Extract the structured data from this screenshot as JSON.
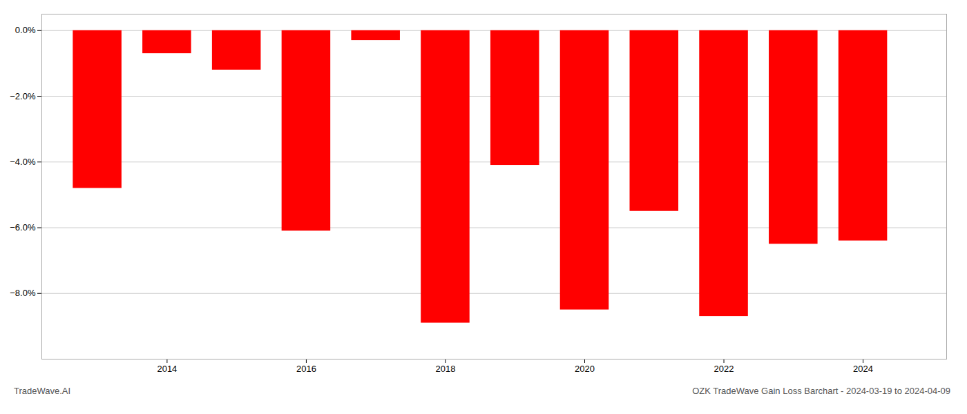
{
  "chart_data": {
    "type": "bar",
    "title": "OZK TradeWave Gain Loss Barchart - 2024-03-19 to 2024-04-09",
    "annotations": [
      "TradeWave.AI"
    ],
    "x": [
      2013,
      2014,
      2015,
      2016,
      2017,
      2018,
      2019,
      2020,
      2021,
      2022,
      2023,
      2024
    ],
    "values": [
      -4.8,
      -0.7,
      -1.2,
      -6.1,
      -0.3,
      -8.9,
      -4.1,
      -8.5,
      -5.5,
      -8.7,
      -6.5,
      -6.4
    ],
    "color": "#ff0000",
    "xlim": [
      2012.2,
      2025.2
    ],
    "xticks": [
      2014,
      2016,
      2018,
      2020,
      2022,
      2024
    ],
    "ylim": [
      -10.0,
      0.5
    ],
    "yticks": [
      {
        "value": 0.0,
        "label": "0.0%"
      },
      {
        "value": -2.0,
        "label": "−2.0%"
      },
      {
        "value": -4.0,
        "label": "−4.0%"
      },
      {
        "value": -6.0,
        "label": "−6.0%"
      },
      {
        "value": -8.0,
        "label": "−8.0%"
      }
    ],
    "grid": true
  }
}
